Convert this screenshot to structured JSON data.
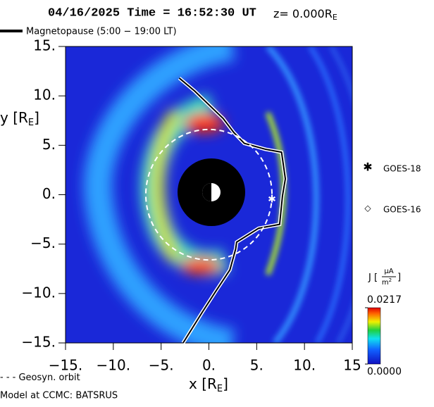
{
  "chart_data": {
    "type": "field",
    "title": "04/16/2025 Time = 16:52:30 UT",
    "z_label": {
      "text": "z= 0.000R",
      "sub": "E"
    },
    "xlabel": {
      "text": "x [R",
      "sub": "E",
      "end": "]"
    },
    "ylabel": {
      "text": "y [R",
      "sub": "E",
      "end": "]"
    },
    "xlim": [
      -15,
      15
    ],
    "ylim": [
      -15,
      15
    ],
    "xticks": [
      {
        "value": -15,
        "label": "−15."
      },
      {
        "value": -10,
        "label": "−10."
      },
      {
        "value": -5,
        "label": "−5."
      },
      {
        "value": 0,
        "label": "0."
      },
      {
        "value": 5,
        "label": "5."
      },
      {
        "value": 10,
        "label": "10."
      },
      {
        "value": 15,
        "label": "15"
      }
    ],
    "yticks": [
      {
        "value": 15,
        "label": "15."
      },
      {
        "value": 10,
        "label": "10."
      },
      {
        "value": 5,
        "label": "5."
      },
      {
        "value": 0,
        "label": "0."
      },
      {
        "value": -5,
        "label": "−5."
      },
      {
        "value": -10,
        "label": "−10."
      },
      {
        "value": -15,
        "label": "−15."
      }
    ],
    "magnetopause": {
      "name": "Magnetopause (5:00 − 19:00 LT)",
      "x": [
        -3.1,
        -1.5,
        0,
        1.5,
        2.6,
        3.7,
        5.9,
        7.6,
        8.0,
        7.7,
        7.4,
        5.2,
        2.9,
        2.8,
        2.2,
        0.7,
        -0.7,
        -2.7
      ],
      "y": [
        11.8,
        10.5,
        9.1,
        7.7,
        6.3,
        5.2,
        4.6,
        4.3,
        1.6,
        -0.1,
        -3.0,
        -3.4,
        -4.8,
        -5.5,
        -7.6,
        -9.8,
        -11.9,
        -15
      ]
    },
    "orbit": {
      "name": "Geosyn. orbit",
      "radius": 6.6
    },
    "satellites": [
      {
        "name": "GOES-18",
        "x": 6.6,
        "y": -0.5
      },
      {
        "name": "GOES-16"
      }
    ],
    "colorbar": {
      "label": {
        "prefix": "J [",
        "num": "μA",
        "den": "m",
        "den_sup": "2",
        "suffix": "]"
      },
      "ticks": [
        {
          "value": 0.0217,
          "label": "0.0217"
        },
        {
          "value": 0,
          "label": "0.0000"
        }
      ],
      "lim": [
        0,
        0.0217
      ]
    },
    "footer": "Model at CCMC: BATSRUS"
  }
}
